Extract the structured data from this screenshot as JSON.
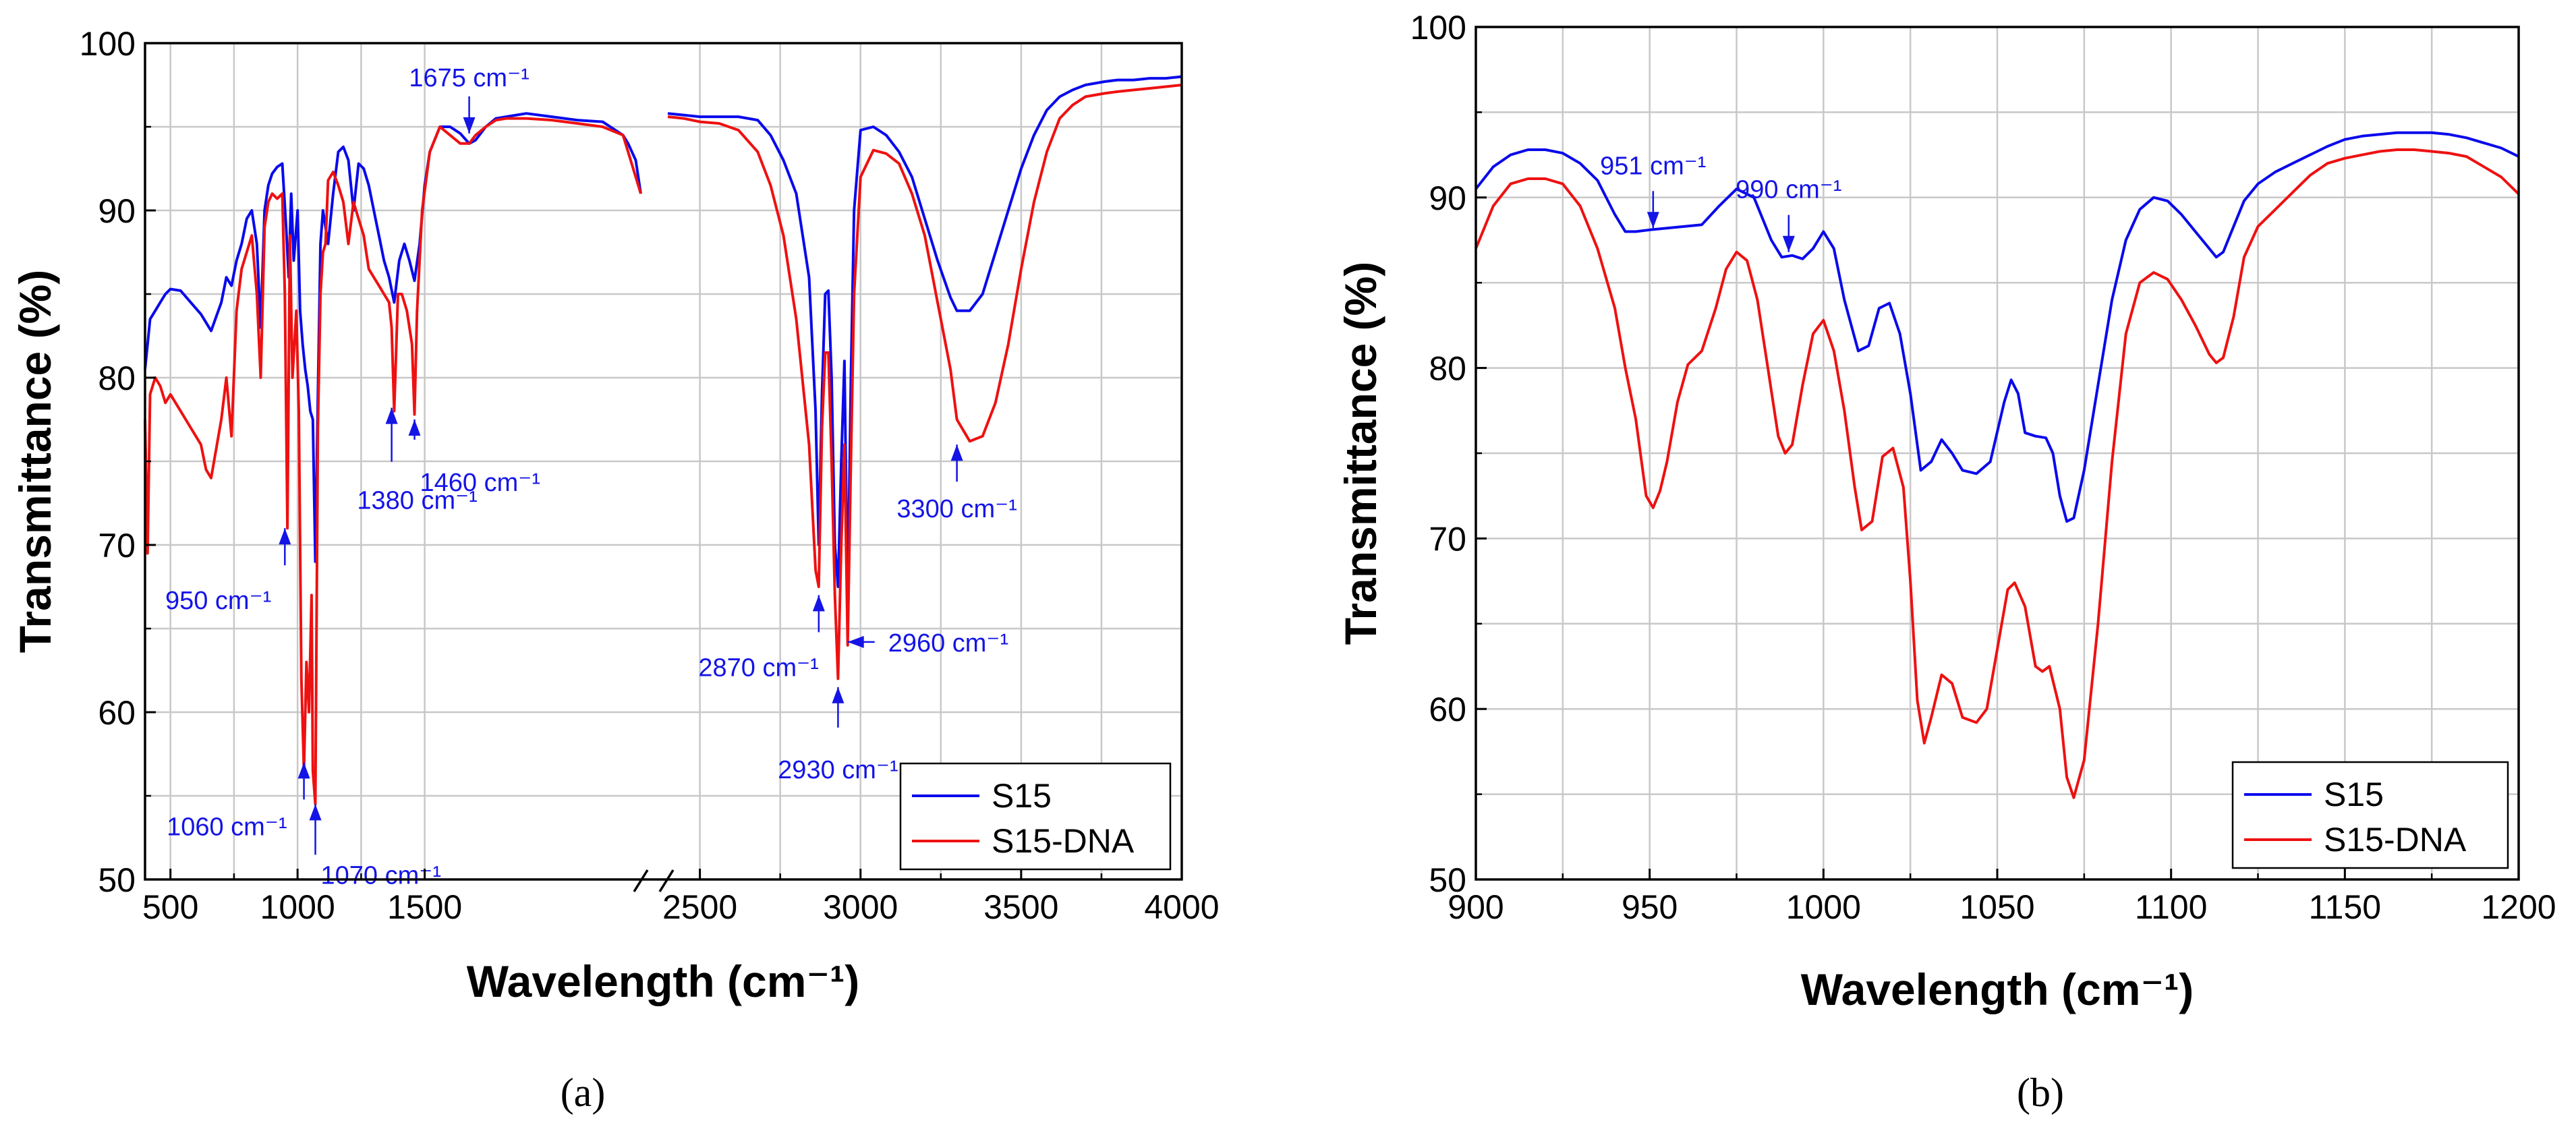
{
  "colors": {
    "s15": "#0a0aeb",
    "s15dna": "#ee1111",
    "annotation": "#1414e6"
  },
  "chart_data": [
    {
      "type": "line",
      "panel_label": "(a)",
      "xlabel": "Wavelength (cm⁻¹)",
      "ylabel": "Transmittance (%)",
      "ylim": [
        50,
        100
      ],
      "yticks": [
        "50",
        "60",
        "70",
        "80",
        "90",
        "100"
      ],
      "xlim": [
        400,
        4000
      ],
      "x_axis_break": [
        2350,
        2400
      ],
      "xticks": [
        "500",
        "1000",
        "1500",
        "2500",
        "3000",
        "3500",
        "4000"
      ],
      "grid": true,
      "legend": [
        "S15",
        "S15-DNA"
      ],
      "legend_position": "bottom-right",
      "series": [
        {
          "name": "S15",
          "x": [
            400,
            410,
            420,
            440,
            460,
            480,
            500,
            540,
            580,
            620,
            660,
            700,
            720,
            740,
            760,
            780,
            800,
            820,
            840,
            855,
            870,
            885,
            900,
            920,
            940,
            955,
            965,
            975,
            985,
            1000,
            1010,
            1020,
            1030,
            1040,
            1050,
            1060,
            1070,
            1080,
            1090,
            1100,
            1120,
            1140,
            1160,
            1180,
            1200,
            1220,
            1240,
            1260,
            1280,
            1300,
            1320,
            1340,
            1360,
            1380,
            1400,
            1420,
            1440,
            1460,
            1480,
            1500,
            1520,
            1560,
            1600,
            1640,
            1675,
            1700,
            1740,
            1780,
            1820,
            1900,
            2000,
            2100,
            2200,
            2280,
            2300,
            2330,
            2350,
            2400,
            2450,
            2500,
            2560,
            2620,
            2680,
            2720,
            2760,
            2800,
            2840,
            2860,
            2870,
            2880,
            2890,
            2900,
            2910,
            2920,
            2930,
            2940,
            2950,
            2960,
            2970,
            2980,
            3000,
            3040,
            3080,
            3120,
            3160,
            3200,
            3240,
            3280,
            3300,
            3340,
            3380,
            3420,
            3460,
            3500,
            3540,
            3580,
            3620,
            3660,
            3700,
            3760,
            3800,
            3850,
            3900,
            3950,
            4000
          ],
          "y": [
            80.5,
            82,
            83.5,
            84,
            84.5,
            85,
            85.3,
            85.2,
            84.5,
            83.8,
            82.8,
            84.5,
            86,
            85.5,
            87,
            88,
            89.5,
            90,
            88,
            83,
            90,
            91.5,
            92.2,
            92.6,
            92.8,
            89,
            86,
            91,
            87,
            90,
            84,
            82,
            80.5,
            79.5,
            78,
            77.5,
            69,
            79,
            88,
            90,
            88,
            91,
            93.5,
            93.8,
            93,
            90,
            92.8,
            92.5,
            91.5,
            90,
            88.5,
            87,
            86,
            84.5,
            87,
            88,
            87,
            85.8,
            88,
            91.5,
            93.5,
            95,
            95,
            94.6,
            94,
            94.2,
            95,
            95.5,
            95.6,
            95.8,
            95.6,
            95.4,
            95.3,
            94.5,
            94,
            93,
            91,
            95.8,
            95.7,
            95.6,
            95.6,
            95.6,
            95.4,
            94.5,
            93,
            91,
            86,
            78,
            70,
            79,
            85,
            85.2,
            80,
            70,
            67.5,
            75,
            81,
            66.5,
            80,
            90,
            94.8,
            95,
            94.5,
            93.5,
            92,
            89.5,
            87,
            84.8,
            84,
            84,
            85,
            87.5,
            90,
            92.5,
            94.5,
            96,
            96.8,
            97.2,
            97.5,
            97.7,
            97.8,
            97.8,
            97.9,
            97.9,
            98
          ]
        },
        {
          "name": "S15-DNA",
          "x": [
            400,
            410,
            420,
            440,
            460,
            480,
            500,
            540,
            580,
            620,
            640,
            660,
            700,
            720,
            740,
            760,
            780,
            800,
            820,
            840,
            855,
            870,
            885,
            900,
            920,
            940,
            950,
            960,
            970,
            980,
            995,
            1005,
            1015,
            1025,
            1035,
            1045,
            1055,
            1060,
            1070,
            1080,
            1090,
            1100,
            1110,
            1120,
            1140,
            1160,
            1180,
            1200,
            1220,
            1240,
            1260,
            1280,
            1300,
            1320,
            1340,
            1360,
            1370,
            1380,
            1395,
            1410,
            1430,
            1450,
            1460,
            1470,
            1490,
            1520,
            1560,
            1600,
            1640,
            1675,
            1700,
            1740,
            1780,
            1820,
            1900,
            2000,
            2100,
            2200,
            2280,
            2300,
            2330,
            2350,
            2400,
            2450,
            2500,
            2560,
            2620,
            2680,
            2720,
            2760,
            2800,
            2840,
            2860,
            2870,
            2880,
            2890,
            2900,
            2910,
            2920,
            2930,
            2940,
            2950,
            2960,
            2970,
            2980,
            3000,
            3040,
            3080,
            3120,
            3160,
            3200,
            3240,
            3280,
            3300,
            3340,
            3380,
            3420,
            3460,
            3500,
            3540,
            3580,
            3620,
            3660,
            3700,
            3760,
            3800,
            3850,
            3900,
            3950,
            4000
          ],
          "y": [
            77.5,
            69.5,
            79,
            80,
            79.5,
            78.5,
            79,
            78,
            77,
            76,
            74.5,
            74,
            77.5,
            80,
            76.5,
            84,
            86.5,
            87.5,
            88.5,
            85,
            80,
            89,
            90.5,
            91,
            90.7,
            91,
            85,
            71,
            88.5,
            80,
            84,
            78,
            62,
            56.5,
            63,
            60,
            67,
            56.5,
            54.5,
            77,
            85,
            87.5,
            88,
            91.8,
            92.3,
            91.5,
            90.5,
            88,
            90.5,
            89.5,
            88.5,
            86.5,
            86,
            85.5,
            85,
            84.5,
            83,
            78,
            85,
            85,
            84,
            82,
            77.8,
            84,
            90,
            93.5,
            95,
            94.5,
            94,
            94,
            94.5,
            95,
            95.4,
            95.5,
            95.5,
            95.4,
            95.2,
            95,
            94.5,
            93.5,
            92,
            91,
            95.6,
            95.5,
            95.3,
            95.2,
            94.8,
            93.5,
            91.5,
            88.5,
            83.5,
            76,
            68.5,
            67.5,
            77,
            81.5,
            81.5,
            75,
            67,
            62,
            70,
            76,
            64,
            75,
            85,
            92,
            93.6,
            93.4,
            92.8,
            91,
            88.5,
            84.5,
            80.5,
            77.5,
            76.2,
            76.5,
            78.5,
            82,
            86.5,
            90.5,
            93.5,
            95.5,
            96.3,
            96.8,
            97,
            97.1,
            97.2,
            97.3,
            97.4,
            97.5
          ]
        }
      ],
      "annotations": [
        {
          "text": "1675 cm⁻¹",
          "x": 1675,
          "y": 94.6,
          "arrow": "down"
        },
        {
          "text": "950 cm⁻¹",
          "x": 950,
          "y": 71,
          "arrow": "up"
        },
        {
          "text": "1060 cm⁻¹",
          "x": 1025,
          "y": 57,
          "arrow": "up"
        },
        {
          "text": "1070 cm⁻¹",
          "x": 1070,
          "y": 54.5,
          "arrow": "up"
        },
        {
          "text": "1380 cm⁻¹",
          "x": 1370,
          "y": 78.2,
          "arrow": "up"
        },
        {
          "text": "1460 cm⁻¹",
          "x": 1460,
          "y": 77.5,
          "arrow": "up"
        },
        {
          "text": "2870 cm⁻¹",
          "x": 2870,
          "y": 67,
          "arrow": "up"
        },
        {
          "text": "2930 cm⁻¹",
          "x": 2930,
          "y": 61.5,
          "arrow": "up"
        },
        {
          "text": "2960 cm⁻¹",
          "x": 2960,
          "y": 64.2,
          "arrow": "left"
        },
        {
          "text": "3300 cm⁻¹",
          "x": 3300,
          "y": 76,
          "arrow": "up"
        }
      ]
    },
    {
      "type": "line",
      "panel_label": "(b)",
      "xlabel": "Wavelength (cm⁻¹)",
      "ylabel": "Transmittance (%)",
      "ylim": [
        50,
        100
      ],
      "yticks": [
        "50",
        "60",
        "70",
        "80",
        "90",
        "100"
      ],
      "xlim": [
        900,
        1200
      ],
      "xticks": [
        "900",
        "950",
        "1000",
        "1050",
        "1100",
        "1150",
        "1200"
      ],
      "grid": true,
      "legend": [
        "S15",
        "S15-DNA"
      ],
      "legend_position": "bottom-right",
      "series": [
        {
          "name": "S15",
          "x": [
            900,
            905,
            910,
            915,
            920,
            925,
            930,
            935,
            940,
            943,
            946,
            950,
            955,
            960,
            965,
            970,
            975,
            980,
            985,
            988,
            991,
            994,
            997,
            1000,
            1003,
            1006,
            1010,
            1013,
            1016,
            1019,
            1022,
            1025,
            1028,
            1031,
            1034,
            1037,
            1040,
            1044,
            1048,
            1052,
            1054,
            1056,
            1058,
            1061,
            1064,
            1066,
            1068,
            1070,
            1072,
            1075,
            1079,
            1083,
            1087,
            1091,
            1095,
            1099,
            1103,
            1107,
            1111,
            1113,
            1115,
            1118,
            1121,
            1125,
            1130,
            1135,
            1140,
            1145,
            1150,
            1155,
            1160,
            1165,
            1170,
            1175,
            1180,
            1185,
            1190,
            1195,
            1200
          ],
          "y": [
            90.5,
            91.8,
            92.5,
            92.8,
            92.8,
            92.6,
            92,
            91,
            89,
            88,
            88,
            88.1,
            88.2,
            88.3,
            88.4,
            89.5,
            90.5,
            90,
            87.5,
            86.5,
            86.6,
            86.4,
            87,
            88,
            87,
            84,
            81,
            81.3,
            83.5,
            83.8,
            82,
            78.5,
            74,
            74.5,
            75.8,
            75,
            74,
            73.8,
            74.5,
            78,
            79.3,
            78.5,
            76.2,
            76,
            75.9,
            75,
            72.5,
            71,
            71.2,
            74,
            79,
            84,
            87.5,
            89.3,
            90,
            89.8,
            89,
            88,
            87,
            86.5,
            86.8,
            88.3,
            89.8,
            90.8,
            91.5,
            92,
            92.5,
            93,
            93.4,
            93.6,
            93.7,
            93.8,
            93.8,
            93.8,
            93.7,
            93.5,
            93.2,
            92.9,
            92.4
          ]
        },
        {
          "name": "S15-DNA",
          "x": [
            900,
            905,
            910,
            915,
            920,
            925,
            930,
            935,
            940,
            943,
            946,
            949,
            951,
            953,
            955,
            958,
            961,
            965,
            969,
            972,
            975,
            978,
            981,
            984,
            987,
            989,
            991,
            994,
            997,
            1000,
            1003,
            1006,
            1009,
            1011,
            1014,
            1017,
            1020,
            1023,
            1025,
            1027,
            1029,
            1031,
            1034,
            1037,
            1040,
            1044,
            1047,
            1050,
            1053,
            1055,
            1058,
            1061,
            1063,
            1065,
            1068,
            1070,
            1072,
            1075,
            1079,
            1083,
            1087,
            1091,
            1095,
            1099,
            1103,
            1107,
            1111,
            1113,
            1115,
            1118,
            1121,
            1125,
            1130,
            1135,
            1140,
            1145,
            1150,
            1155,
            1160,
            1165,
            1170,
            1175,
            1180,
            1185,
            1190,
            1195,
            1200
          ],
          "y": [
            87,
            89.5,
            90.8,
            91.1,
            91.1,
            90.8,
            89.5,
            87,
            83.5,
            80,
            77,
            72.5,
            71.8,
            72.8,
            74.5,
            78,
            80.2,
            81,
            83.5,
            85.8,
            86.8,
            86.3,
            84,
            80,
            76,
            75,
            75.5,
            79,
            82,
            82.8,
            81,
            77.5,
            73,
            70.5,
            71,
            74.8,
            75.3,
            73,
            67.5,
            60.5,
            58,
            59.5,
            62,
            61.5,
            59.5,
            59.2,
            60,
            63.5,
            67,
            67.4,
            66,
            62.5,
            62.2,
            62.5,
            60,
            56,
            54.8,
            57,
            65,
            74.5,
            82,
            85,
            85.6,
            85.2,
            84,
            82.5,
            80.8,
            80.3,
            80.6,
            83,
            86.5,
            88.3,
            89.3,
            90.3,
            91.3,
            92,
            92.3,
            92.5,
            92.7,
            92.8,
            92.8,
            92.7,
            92.6,
            92.4,
            91.8,
            91.2,
            90.2
          ]
        }
      ],
      "annotations": [
        {
          "text": "951 cm⁻¹",
          "x": 951,
          "y": 88.2,
          "arrow": "down"
        },
        {
          "text": "990 cm⁻¹",
          "x": 990,
          "y": 86.8,
          "arrow": "down"
        }
      ]
    }
  ]
}
